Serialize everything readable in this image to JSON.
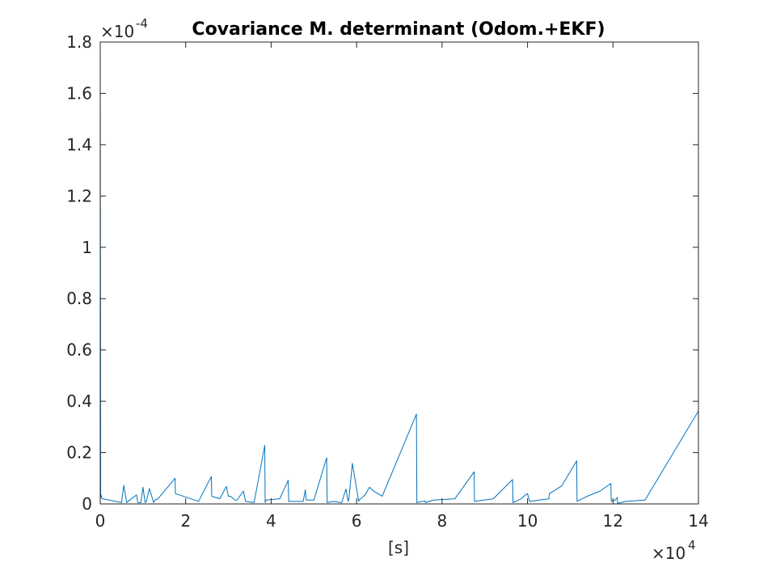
{
  "chart_data": {
    "type": "line",
    "title": "Covariance M. determinant (Odom.+EKF)",
    "xlabel": "[s]",
    "ylabel": "",
    "x_multiplier_base": "×10",
    "x_multiplier_exp": "4",
    "y_multiplier_base": "×10",
    "y_multiplier_exp": "-4",
    "xlim": [
      0,
      14
    ],
    "ylim": [
      0,
      1.8
    ],
    "x_ticks": [
      0,
      2,
      4,
      6,
      8,
      10,
      12,
      14
    ],
    "x_tick_labels": [
      "0",
      "2",
      "4",
      "6",
      "8",
      "10",
      "12",
      "14"
    ],
    "y_ticks": [
      0,
      0.2,
      0.4,
      0.6,
      0.8,
      1.0,
      1.2,
      1.4,
      1.6,
      1.8
    ],
    "y_tick_labels": [
      "0",
      "0.2",
      "0.4",
      "0.6",
      "0.8",
      "1",
      "1.2",
      "1.4",
      "1.6",
      "1.8"
    ],
    "grid": false,
    "series": [
      {
        "color": "#0072bd",
        "x": [
          0,
          0.01,
          0.02,
          0.04,
          0.06,
          0.5,
          0.55,
          0.62,
          0.65,
          0.85,
          0.88,
          0.95,
          1.0,
          1.05,
          1.08,
          1.15,
          1.25,
          1.28,
          1.35,
          1.75,
          1.76,
          2.3,
          2.6,
          2.61,
          2.8,
          2.95,
          3.0,
          3.05,
          3.15,
          3.2,
          3.35,
          3.4,
          3.6,
          3.85,
          3.86,
          3.88,
          4.2,
          4.4,
          4.41,
          4.75,
          4.8,
          4.82,
          5.0,
          5.3,
          5.31,
          5.45,
          5.65,
          5.75,
          5.8,
          5.82,
          5.9,
          6.05,
          6.06,
          6.2,
          6.3,
          6.4,
          6.6,
          7.4,
          7.41,
          7.6,
          7.61,
          7.8,
          8.3,
          8.75,
          8.76,
          9.2,
          9.65,
          9.66,
          9.85,
          9.95,
          10.0,
          10.05,
          10.5,
          10.51,
          10.8,
          11.15,
          11.16,
          11.4,
          11.7,
          11.95,
          11.96,
          12.05,
          12.1,
          12.11,
          12.3,
          12.75,
          14.0
        ],
        "y": [
          1.75,
          0.025,
          0.035,
          0.02,
          0.02,
          0.005,
          0.072,
          0.005,
          0.01,
          0.035,
          0.005,
          0.005,
          0.065,
          0.005,
          0.01,
          0.06,
          0.005,
          0.015,
          0.02,
          0.1,
          0.04,
          0.01,
          0.107,
          0.03,
          0.02,
          0.068,
          0.03,
          0.03,
          0.015,
          0.015,
          0.05,
          0.01,
          0.005,
          0.228,
          0.005,
          0.015,
          0.02,
          0.092,
          0.01,
          0.01,
          0.055,
          0.015,
          0.015,
          0.18,
          0.005,
          0.01,
          0.005,
          0.058,
          0.01,
          0.02,
          0.158,
          0.01,
          0.015,
          0.035,
          0.065,
          0.05,
          0.03,
          0.35,
          0.005,
          0.012,
          0.005,
          0.015,
          0.02,
          0.125,
          0.01,
          0.02,
          0.095,
          0.005,
          0.02,
          0.035,
          0.04,
          0.01,
          0.02,
          0.04,
          0.07,
          0.168,
          0.01,
          0.03,
          0.05,
          0.08,
          0.01,
          0.015,
          0.025,
          0.002,
          0.01,
          0.015,
          0.362
        ]
      }
    ]
  }
}
